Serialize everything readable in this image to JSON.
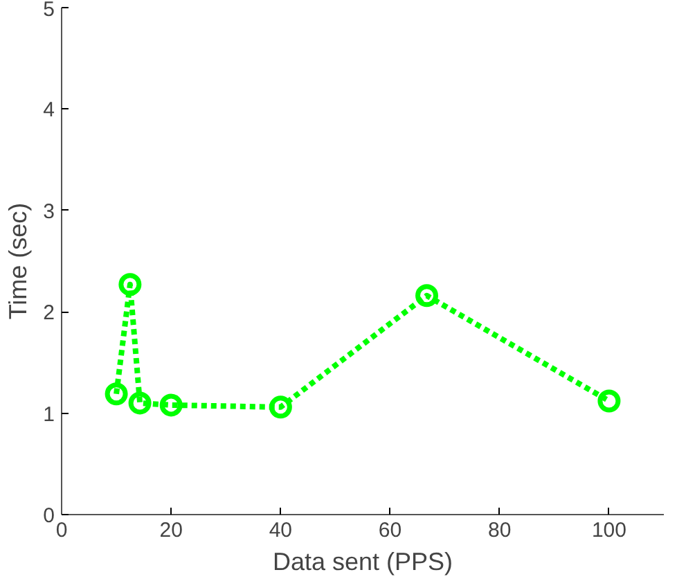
{
  "chart_data": {
    "type": "line",
    "xlabel": "Data sent (PPS)",
    "ylabel": "Time (sec)",
    "x": [
      10,
      12.5,
      14.3,
      20,
      40,
      66.7,
      100
    ],
    "series": [
      {
        "color": "#00ff00",
        "values": [
          1.19,
          2.27,
          1.1,
          1.08,
          1.06,
          2.16,
          1.12
        ]
      }
    ],
    "xlim": [
      0,
      110
    ],
    "ylim": [
      0,
      5
    ],
    "xticks": [
      0,
      20,
      40,
      60,
      80,
      100
    ],
    "yticks": [
      0,
      1,
      2,
      3,
      4,
      5
    ],
    "marker": "circle",
    "line_style": "dashed",
    "grid": false
  }
}
